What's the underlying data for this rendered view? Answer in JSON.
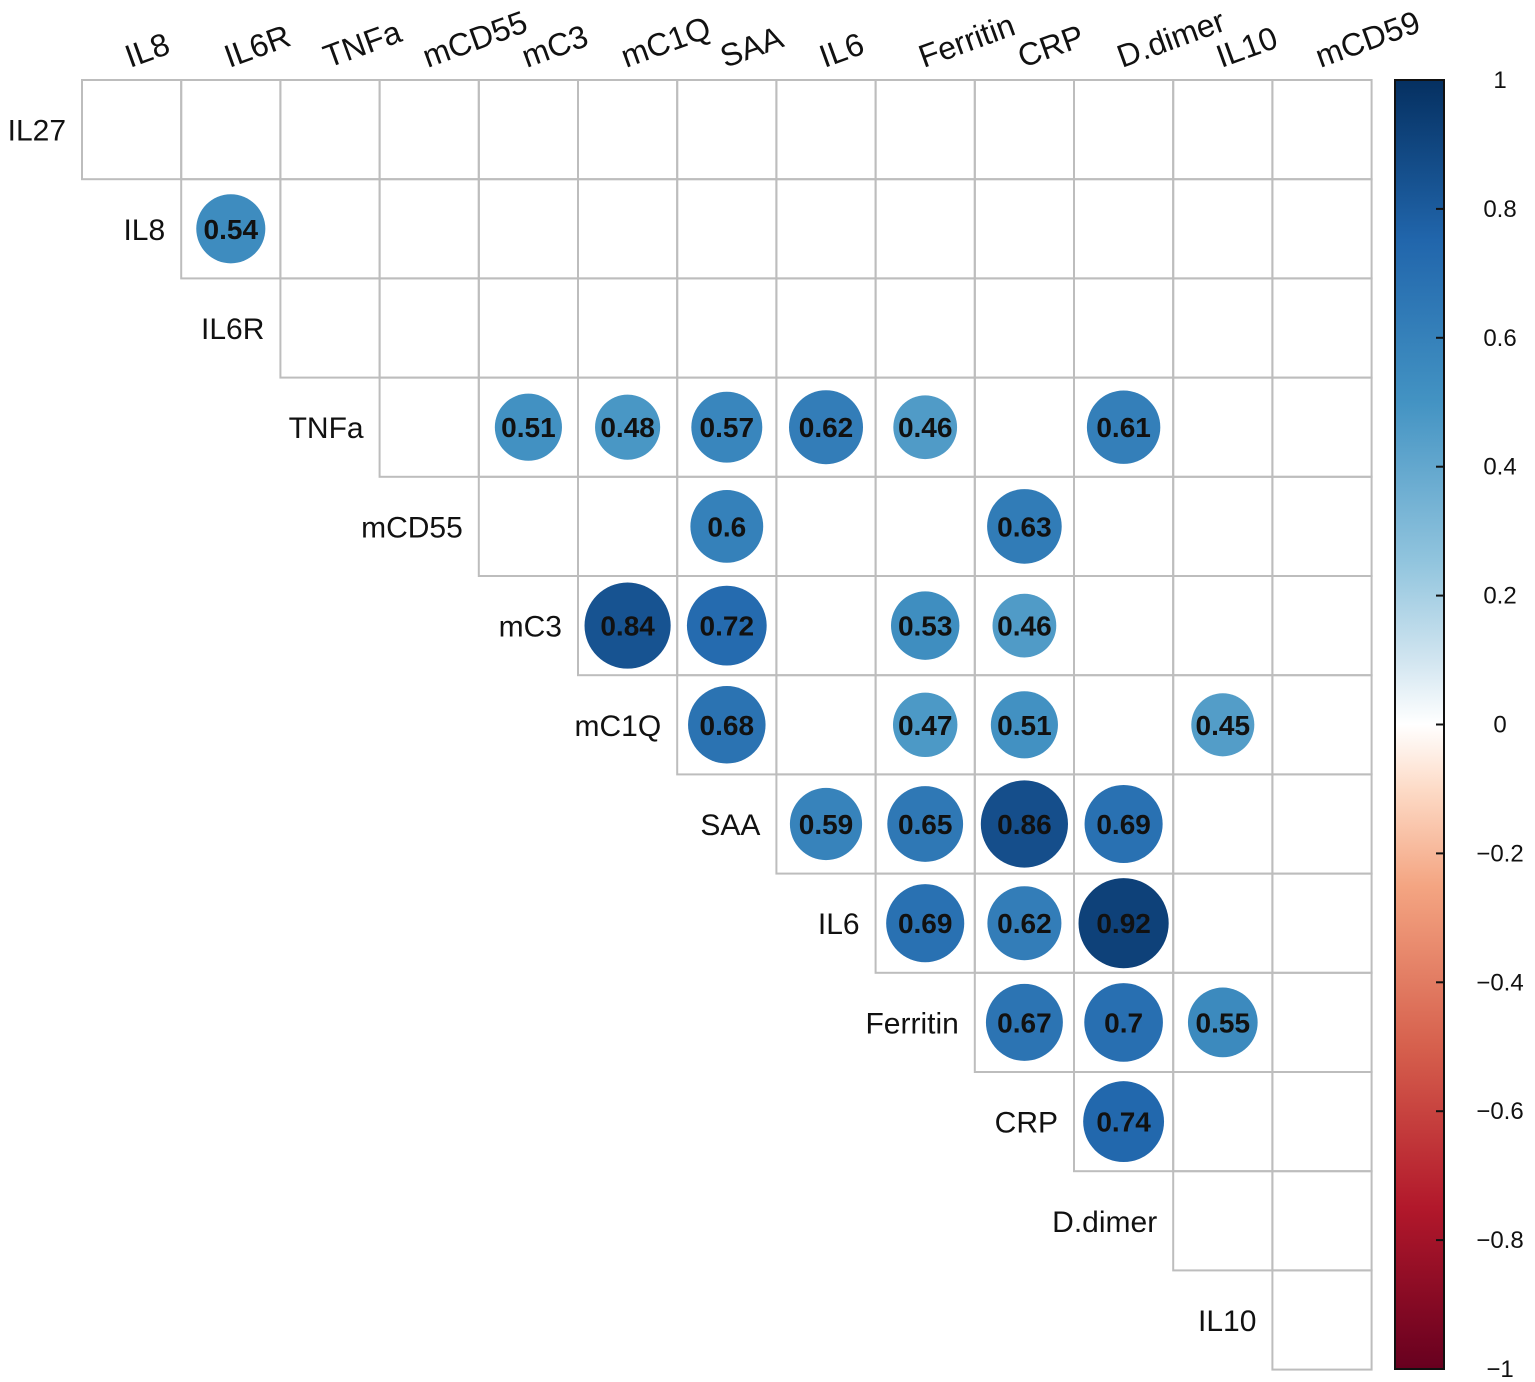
{
  "chart_data": {
    "type": "heatmap",
    "subtype": "correlation-matrix-upper-circles",
    "variables": [
      "IL27",
      "IL8",
      "IL6R",
      "TNFa",
      "mCD55",
      "mC3",
      "mC1Q",
      "SAA",
      "IL6",
      "Ferritin",
      "CRP",
      "D.dimer",
      "IL10",
      "mCD59"
    ],
    "column_labels": [
      "IL8",
      "IL6R",
      "TNFa",
      "mCD55",
      "mC3",
      "mC1Q",
      "SAA",
      "IL6",
      "Ferritin",
      "CRP",
      "D.dimer",
      "IL10",
      "mCD59"
    ],
    "row_labels": [
      "IL27",
      "IL8",
      "IL6R",
      "TNFa",
      "mCD55",
      "mC3",
      "mC1Q",
      "SAA",
      "IL6",
      "Ferritin",
      "CRP",
      "D.dimer",
      "IL10"
    ],
    "correlations": [
      {
        "row": "IL8",
        "col": "IL6R",
        "value": 0.54,
        "label": "0.54"
      },
      {
        "row": "TNFa",
        "col": "mC3",
        "value": 0.51,
        "label": "0.51"
      },
      {
        "row": "TNFa",
        "col": "mC1Q",
        "value": 0.48,
        "label": "0.48"
      },
      {
        "row": "TNFa",
        "col": "SAA",
        "value": 0.57,
        "label": "0.57"
      },
      {
        "row": "TNFa",
        "col": "IL6",
        "value": 0.62,
        "label": "0.62"
      },
      {
        "row": "TNFa",
        "col": "Ferritin",
        "value": 0.46,
        "label": "0.46"
      },
      {
        "row": "TNFa",
        "col": "D.dimer",
        "value": 0.61,
        "label": "0.61"
      },
      {
        "row": "mCD55",
        "col": "SAA",
        "value": 0.6,
        "label": "0.6"
      },
      {
        "row": "mCD55",
        "col": "CRP",
        "value": 0.63,
        "label": "0.63"
      },
      {
        "row": "mC3",
        "col": "mC1Q",
        "value": 0.84,
        "label": "0.84"
      },
      {
        "row": "mC3",
        "col": "SAA",
        "value": 0.72,
        "label": "0.72"
      },
      {
        "row": "mC3",
        "col": "Ferritin",
        "value": 0.53,
        "label": "0.53"
      },
      {
        "row": "mC3",
        "col": "CRP",
        "value": 0.46,
        "label": "0.46"
      },
      {
        "row": "mC1Q",
        "col": "SAA",
        "value": 0.68,
        "label": "0.68"
      },
      {
        "row": "mC1Q",
        "col": "Ferritin",
        "value": 0.47,
        "label": "0.47"
      },
      {
        "row": "mC1Q",
        "col": "CRP",
        "value": 0.51,
        "label": "0.51"
      },
      {
        "row": "mC1Q",
        "col": "IL10",
        "value": 0.45,
        "label": "0.45"
      },
      {
        "row": "SAA",
        "col": "IL6",
        "value": 0.59,
        "label": "0.59"
      },
      {
        "row": "SAA",
        "col": "Ferritin",
        "value": 0.65,
        "label": "0.65"
      },
      {
        "row": "SAA",
        "col": "CRP",
        "value": 0.86,
        "label": "0.86"
      },
      {
        "row": "SAA",
        "col": "D.dimer",
        "value": 0.69,
        "label": "0.69"
      },
      {
        "row": "IL6",
        "col": "Ferritin",
        "value": 0.69,
        "label": "0.69"
      },
      {
        "row": "IL6",
        "col": "CRP",
        "value": 0.62,
        "label": "0.62"
      },
      {
        "row": "IL6",
        "col": "D.dimer",
        "value": 0.92,
        "label": "0.92"
      },
      {
        "row": "Ferritin",
        "col": "CRP",
        "value": 0.67,
        "label": "0.67"
      },
      {
        "row": "Ferritin",
        "col": "D.dimer",
        "value": 0.7,
        "label": "0.7"
      },
      {
        "row": "Ferritin",
        "col": "IL10",
        "value": 0.55,
        "label": "0.55"
      },
      {
        "row": "CRP",
        "col": "D.dimer",
        "value": 0.74,
        "label": "0.74"
      }
    ],
    "color_scale": {
      "range": [
        -1,
        1
      ],
      "ticks": [
        {
          "value": 1,
          "label": "1"
        },
        {
          "value": 0.8,
          "label": "0.8"
        },
        {
          "value": 0.6,
          "label": "0.6"
        },
        {
          "value": 0.4,
          "label": "0.4"
        },
        {
          "value": 0.2,
          "label": "0.2"
        },
        {
          "value": 0,
          "label": "0"
        },
        {
          "value": -0.2,
          "label": "−0.2"
        },
        {
          "value": -0.4,
          "label": "−0.4"
        },
        {
          "value": -0.6,
          "label": "−0.6"
        },
        {
          "value": -0.8,
          "label": "−0.8"
        },
        {
          "value": -1,
          "label": "−1"
        }
      ],
      "stops": [
        {
          "value": -1,
          "color": "#67001f"
        },
        {
          "value": -0.75,
          "color": "#b2182b"
        },
        {
          "value": -0.5,
          "color": "#d6604d"
        },
        {
          "value": -0.25,
          "color": "#f4a582"
        },
        {
          "value": -0.1,
          "color": "#fddbc7"
        },
        {
          "value": 0,
          "color": "#ffffff"
        },
        {
          "value": 0.1,
          "color": "#d1e5f0"
        },
        {
          "value": 0.25,
          "color": "#92c5de"
        },
        {
          "value": 0.5,
          "color": "#4393c3"
        },
        {
          "value": 0.75,
          "color": "#2166ac"
        },
        {
          "value": 1,
          "color": "#053061"
        }
      ],
      "legend_placement": "right"
    },
    "grid": true,
    "title": "",
    "xlabel": "",
    "ylabel": ""
  }
}
